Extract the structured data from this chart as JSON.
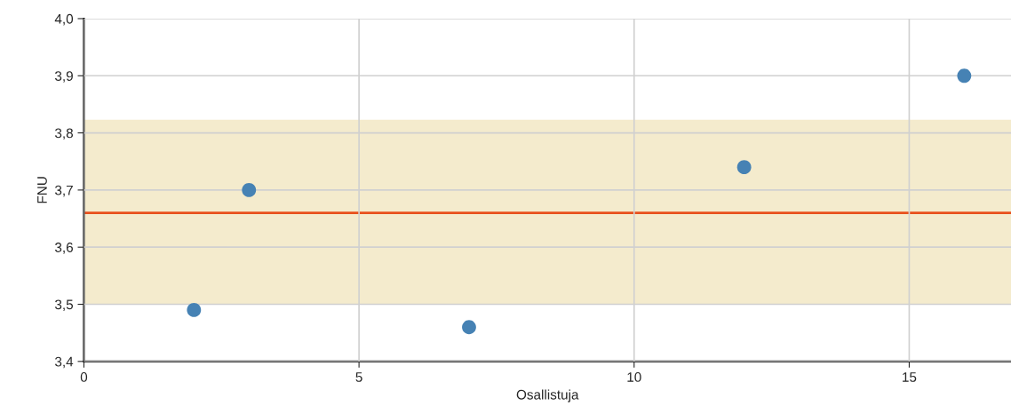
{
  "chart_data": {
    "type": "scatter",
    "xlabel": "Osallistuja",
    "ylabel": "FNU",
    "x": [
      2,
      3,
      7,
      12,
      16
    ],
    "series": [
      {
        "color": "#4682b4",
        "values": [
          3.49,
          3.7,
          3.46,
          3.74,
          3.9
        ]
      }
    ],
    "marker": "circle",
    "grid": true,
    "legend": false,
    "xlim": [
      0,
      16.85
    ],
    "xticks": [
      0,
      5,
      10,
      15
    ],
    "ylim": [
      3.4,
      4.0
    ],
    "yticks": [
      {
        "value": 3.4,
        "label": "3,4"
      },
      {
        "value": 3.5,
        "label": "3,5"
      },
      {
        "value": 3.6,
        "label": "3,6"
      },
      {
        "value": 3.7,
        "label": "3,7"
      },
      {
        "value": 3.8,
        "label": "3,8"
      },
      {
        "value": 3.9,
        "label": "3,9"
      },
      {
        "value": 4.0,
        "label": "4,0"
      }
    ],
    "ref_lines": [
      {
        "axis": "y",
        "value": 3.66,
        "color": "#e8501c",
        "line_style": "solid"
      }
    ],
    "bands": [
      {
        "axis": "y",
        "from": 3.5,
        "to": 3.823,
        "color": "#f4ebcd"
      }
    ]
  }
}
